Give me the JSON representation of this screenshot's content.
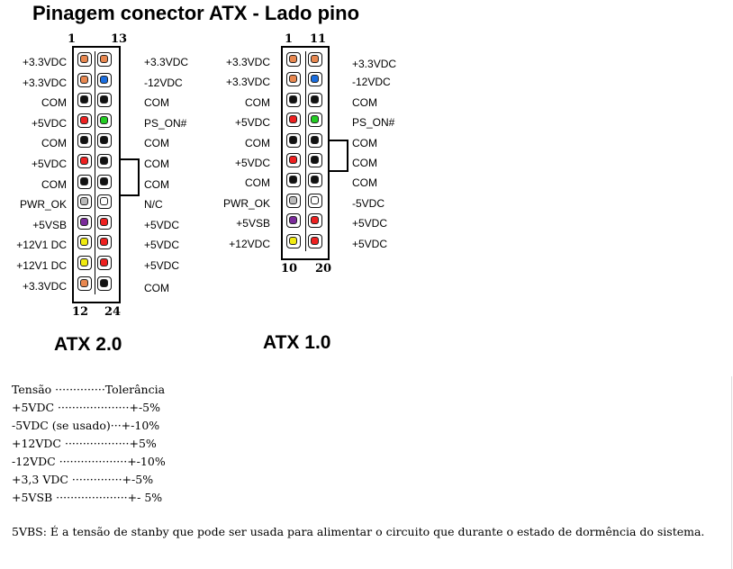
{
  "title": "Pinagem conector ATX - Lado pino",
  "atx20": {
    "name": "ATX 2.0",
    "top_left_number": "1",
    "top_right_number": "13",
    "bottom_left_number": "12",
    "bottom_right_number": "24",
    "left_labels": [
      "+3.3VDC",
      "+3.3VDC",
      "COM",
      "+5VDC",
      "COM",
      "+5VDC",
      "COM",
      "PWR_OK",
      "+5VSB",
      "+12V1 DC",
      "+12V1 DC",
      "+3.3VDC"
    ],
    "right_labels": [
      "+3.3VDC",
      "-12VDC",
      "COM",
      "PS_ON#",
      "COM",
      "COM",
      "COM",
      "N/C",
      "+5VDC",
      "+5VDC",
      "+5VDC",
      "COM"
    ],
    "left_colors": [
      "#e8874f",
      "#e8874f",
      "#111111",
      "#ee2020",
      "#111111",
      "#ee2020",
      "#111111",
      "#bbbbbb",
      "#7a2a9a",
      "#f0ea10",
      "#f0ea10",
      "#e8874f"
    ],
    "right_colors": [
      "#e8874f",
      "#1a6ee0",
      "#111111",
      "#22cc22",
      "#111111",
      "#111111",
      "#111111",
      "#ffffff",
      "#ee2020",
      "#ee2020",
      "#ee2020",
      "#111111"
    ]
  },
  "atx10": {
    "name": "ATX 1.0",
    "top_left_number": "1",
    "top_right_number": "11",
    "bottom_left_number": "10",
    "bottom_right_number": "20",
    "left_labels": [
      "+3.3VDC",
      "+3.3VDC",
      "COM",
      "+5VDC",
      "COM",
      "+5VDC",
      "COM",
      "PWR_OK",
      "+5VSB",
      "+12VDC"
    ],
    "right_labels": [
      "+3.3VDC",
      "-12VDC",
      "COM",
      "PS_ON#",
      "COM",
      "COM",
      "COM",
      "-5VDC",
      "+5VDC",
      "+5VDC"
    ],
    "left_colors": [
      "#e8874f",
      "#e8874f",
      "#111111",
      "#ee2020",
      "#111111",
      "#ee2020",
      "#111111",
      "#bbbbbb",
      "#7a2a9a",
      "#f0ea10"
    ],
    "right_colors": [
      "#e8874f",
      "#1a6ee0",
      "#111111",
      "#22cc22",
      "#111111",
      "#111111",
      "#111111",
      "#ffffff",
      "#ee2020",
      "#ee2020"
    ]
  },
  "tolerance": {
    "header": "Tensão ··············Tolerância",
    "rows": [
      "+5VDC ····················+-5%",
      "-5VDC (se usado)···+-10%",
      "+12VDC ··················+5%",
      "-12VDC ···················+-10%",
      "+3,3 VDC ··············+-5%",
      "+5VSB ····················+- 5%"
    ]
  },
  "note": "5VBS: É a tensão de stanby que pode ser usada para alimentar o circuito que durante o estado de dormência do sistema."
}
